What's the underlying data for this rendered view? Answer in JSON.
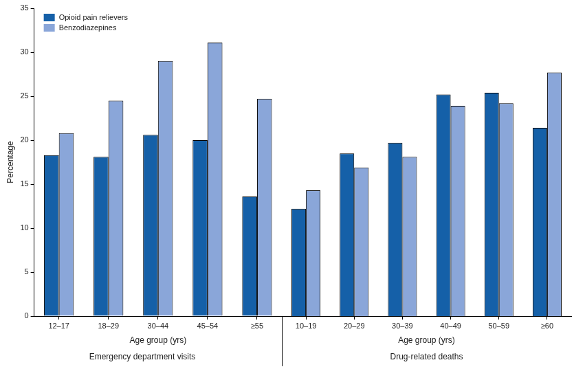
{
  "chart_data": [
    {
      "type": "bar",
      "title": "Emergency department visits",
      "x_label": "Age group (yrs)",
      "y_label": "Percentage",
      "categories": [
        "12–17",
        "18–29",
        "30–44",
        "45–54",
        "≥55"
      ],
      "series": [
        {
          "name": "Opioid pain relievers",
          "color": "#1560a8",
          "values": [
            18.3,
            18.1,
            20.6,
            20.0,
            13.6
          ]
        },
        {
          "name": "Benzodiazepines",
          "color": "#8aa6d9",
          "values": [
            20.8,
            24.5,
            29.0,
            31.1,
            24.7
          ]
        }
      ],
      "ylim": [
        0,
        35
      ],
      "yticks": [
        0,
        5,
        10,
        15,
        20,
        25,
        30,
        35
      ],
      "grid": false,
      "legend": "upper left"
    },
    {
      "type": "bar",
      "title": "Drug-related deaths",
      "x_label": "Age group (yrs)",
      "categories": [
        "10–19",
        "20–29",
        "30–39",
        "40–49",
        "50–59",
        "≥60"
      ],
      "series": [
        {
          "name": "Opioid pain relievers",
          "color": "#1560a8",
          "values": [
            12.2,
            18.5,
            19.7,
            25.2,
            25.4,
            21.4
          ]
        },
        {
          "name": "Benzodiazepines",
          "color": "#8aa6d9",
          "values": [
            14.3,
            16.9,
            18.1,
            23.9,
            24.2,
            27.7
          ]
        }
      ],
      "ylim": [
        0,
        35
      ],
      "yticks": [
        0,
        5,
        10,
        15,
        20,
        25,
        30,
        35
      ],
      "grid": false,
      "tick_labels": "x"
    }
  ]
}
